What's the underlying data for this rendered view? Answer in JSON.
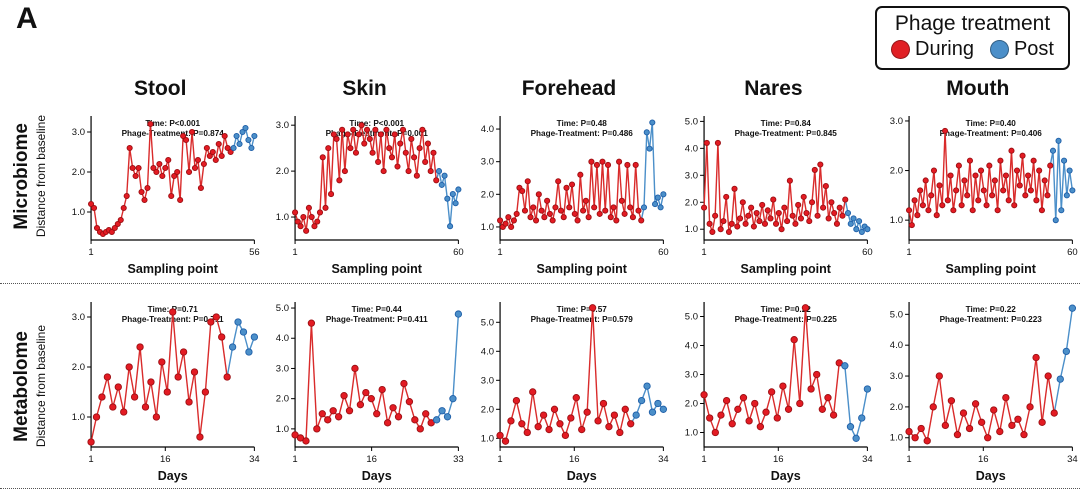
{
  "panel_label": "A",
  "legend": {
    "title": "Phage treatment",
    "items": [
      {
        "label": "During",
        "color": "#e01f24"
      },
      {
        "label": "Post",
        "color": "#4b8fc9"
      }
    ]
  },
  "rows": [
    {
      "title": "Microbiome",
      "axis_label": "Distance from baseline",
      "x_label": "Sampling point"
    },
    {
      "title": "Metabolome",
      "axis_label": "Distance from baseline",
      "x_label": "Days"
    }
  ],
  "columns": [
    "Stool",
    "Skin",
    "Forehead",
    "Nares",
    "Mouth"
  ],
  "colors": {
    "during_fill": "#e31b23",
    "during_stroke": "#9c0f13",
    "during_line": "#d92b2b",
    "post_fill": "#4b8fc9",
    "post_stroke": "#1f5fa8",
    "post_line": "#4b8fc9"
  },
  "chart_data": [
    {
      "id": "micro-stool",
      "type": "line",
      "row": 0,
      "col": 0,
      "stats": {
        "time": "Time: P<0.001",
        "phage": "Phage-Treatment: P=0.874"
      },
      "xlim": [
        1,
        56
      ],
      "xticks": [
        1,
        56
      ],
      "ylim": [
        0.3,
        3.4
      ],
      "yticks": [
        1.0,
        2.0,
        3.0
      ],
      "series": [
        {
          "name": "During",
          "values": [
            1.2,
            1.1,
            0.6,
            0.5,
            0.45,
            0.5,
            0.55,
            0.5,
            0.6,
            0.7,
            0.8,
            1.1,
            1.4,
            2.6,
            2.1,
            1.9,
            2.1,
            1.5,
            1.3,
            1.6,
            3.2,
            2.1,
            2.0,
            2.2,
            1.9,
            2.1,
            2.3,
            1.4,
            1.9,
            2.0,
            1.3,
            2.9,
            2.8,
            2.0,
            3.0,
            2.1,
            2.3,
            1.6,
            2.2,
            2.6,
            2.4,
            2.5,
            2.3,
            2.7,
            2.4,
            2.9,
            2.6,
            2.5
          ]
        },
        {
          "name": "Post",
          "values": [
            2.6,
            2.9,
            2.7,
            3.0,
            3.1,
            2.8,
            2.6,
            2.9
          ]
        }
      ]
    },
    {
      "id": "micro-skin",
      "type": "line",
      "row": 0,
      "col": 1,
      "stats": {
        "time": "Time: P<0.001",
        "phage": "Phage-Treatment: P=0.001"
      },
      "xlim": [
        1,
        60
      ],
      "xticks": [
        1,
        60
      ],
      "ylim": [
        0.5,
        3.2
      ],
      "yticks": [
        1.0,
        2.0,
        3.0
      ],
      "series": [
        {
          "name": "During",
          "values": [
            1.1,
            0.9,
            0.8,
            1.0,
            0.7,
            1.2,
            1.0,
            0.8,
            0.9,
            1.1,
            2.3,
            1.2,
            2.5,
            1.5,
            2.8,
            2.7,
            1.8,
            2.9,
            2.0,
            2.8,
            2.5,
            2.9,
            2.4,
            2.8,
            3.0,
            2.6,
            2.9,
            2.7,
            2.4,
            2.9,
            2.2,
            2.8,
            2.0,
            2.9,
            2.5,
            2.3,
            2.8,
            2.1,
            2.6,
            2.9,
            2.4,
            2.0,
            2.7,
            2.3,
            1.9,
            2.5,
            2.9,
            2.2,
            2.6,
            2.0,
            2.4,
            1.8
          ]
        },
        {
          "name": "Post",
          "values": [
            2.0,
            1.7,
            1.9,
            1.4,
            0.8,
            1.5,
            1.3,
            1.6
          ]
        }
      ]
    },
    {
      "id": "micro-forehead",
      "type": "line",
      "row": 0,
      "col": 2,
      "stats": {
        "time": "Time: P=0.48",
        "phage": "Phage-Treatment: P=0.486"
      },
      "xlim": [
        1,
        60
      ],
      "xticks": [
        1,
        60
      ],
      "ylim": [
        0.6,
        4.4
      ],
      "yticks": [
        1.0,
        2.0,
        3.0,
        4.0
      ],
      "series": [
        {
          "name": "During",
          "values": [
            1.2,
            1.0,
            1.1,
            1.3,
            1.0,
            1.2,
            1.4,
            2.2,
            2.1,
            1.5,
            2.4,
            1.3,
            1.6,
            1.2,
            2.0,
            1.5,
            1.3,
            1.8,
            1.4,
            1.2,
            1.6,
            2.4,
            1.5,
            1.3,
            2.2,
            1.6,
            2.3,
            1.4,
            1.2,
            2.6,
            1.5,
            1.8,
            1.3,
            3.0,
            1.6,
            2.9,
            1.4,
            3.0,
            1.5,
            2.9,
            1.3,
            1.6,
            1.2,
            3.0,
            1.8,
            1.4,
            2.9,
            1.6,
            1.3,
            2.9,
            1.5,
            1.2
          ]
        },
        {
          "name": "Post",
          "values": [
            1.6,
            3.9,
            3.4,
            4.2,
            1.7,
            1.9,
            1.6,
            2.0
          ]
        }
      ]
    },
    {
      "id": "micro-nares",
      "type": "line",
      "row": 0,
      "col": 3,
      "stats": {
        "time": "Time: P=0.84",
        "phage": "Phage-Treatment: P=0.845"
      },
      "xlim": [
        1,
        60
      ],
      "xticks": [
        1,
        60
      ],
      "ylim": [
        0.6,
        5.2
      ],
      "yticks": [
        1.0,
        2.0,
        3.0,
        4.0,
        5.0
      ],
      "series": [
        {
          "name": "During",
          "values": [
            1.8,
            4.2,
            1.2,
            0.9,
            1.5,
            4.2,
            1.0,
            1.3,
            2.2,
            0.9,
            1.2,
            2.5,
            1.1,
            1.4,
            2.0,
            1.2,
            1.5,
            1.8,
            1.1,
            1.6,
            1.3,
            1.9,
            1.2,
            1.7,
            1.4,
            2.1,
            1.2,
            1.6,
            1.0,
            1.8,
            1.3,
            2.8,
            1.5,
            1.2,
            1.9,
            1.4,
            2.2,
            1.6,
            1.3,
            2.0,
            3.2,
            1.5,
            3.4,
            1.8,
            2.6,
            1.4,
            2.0,
            1.6,
            1.2,
            1.8,
            1.5,
            2.1
          ]
        },
        {
          "name": "Post",
          "values": [
            1.6,
            1.2,
            1.4,
            1.0,
            1.3,
            0.9,
            1.1,
            1.0
          ]
        }
      ]
    },
    {
      "id": "micro-mouth",
      "type": "line",
      "row": 0,
      "col": 4,
      "stats": {
        "time": "Time: P=0.40",
        "phage": "Phage-Treatment: P=0.406"
      },
      "xlim": [
        1,
        60
      ],
      "xticks": [
        1,
        60
      ],
      "ylim": [
        0.6,
        3.1
      ],
      "yticks": [
        1.0,
        2.0,
        3.0
      ],
      "series": [
        {
          "name": "During",
          "values": [
            1.2,
            0.9,
            1.4,
            1.1,
            1.6,
            1.3,
            1.8,
            1.2,
            1.5,
            2.0,
            1.1,
            1.7,
            1.3,
            2.8,
            1.4,
            1.9,
            1.2,
            1.6,
            2.1,
            1.3,
            1.8,
            1.5,
            2.2,
            1.2,
            1.9,
            1.4,
            2.0,
            1.6,
            1.3,
            2.1,
            1.5,
            1.8,
            1.2,
            2.2,
            1.6,
            1.9,
            1.4,
            2.4,
            1.3,
            2.0,
            1.7,
            2.3,
            1.5,
            1.9,
            1.6,
            2.2,
            1.4,
            2.0,
            1.2,
            1.8,
            1.5,
            2.1
          ]
        },
        {
          "name": "Post",
          "values": [
            2.4,
            1.0,
            2.6,
            1.2,
            2.2,
            1.5,
            2.0,
            1.6
          ]
        }
      ]
    },
    {
      "id": "metab-stool",
      "type": "line",
      "row": 1,
      "col": 0,
      "stats": {
        "time": "Time: P=0.71",
        "phage": "Phage-Treatment: P=0.711"
      },
      "xlim": [
        1,
        34
      ],
      "xticks": [
        1,
        16,
        34
      ],
      "ylim": [
        0.4,
        3.3
      ],
      "yticks": [
        1.0,
        2.0,
        3.0
      ],
      "series": [
        {
          "name": "During",
          "values": [
            0.5,
            1.0,
            1.4,
            1.8,
            1.2,
            1.6,
            1.1,
            2.0,
            1.4,
            2.4,
            1.2,
            1.7,
            1.0,
            2.1,
            1.5,
            3.1,
            1.8,
            2.3,
            1.3,
            1.9,
            0.6,
            1.5,
            2.9,
            3.0,
            2.6,
            1.8
          ]
        },
        {
          "name": "Post",
          "values": [
            2.4,
            2.9,
            2.7,
            2.3,
            2.6
          ]
        }
      ]
    },
    {
      "id": "metab-skin",
      "type": "line",
      "row": 1,
      "col": 1,
      "stats": {
        "time": "Time: P=0.44",
        "phage": "Phage-Treatment: P=0.411"
      },
      "xlim": [
        1,
        33
      ],
      "xticks": [
        1,
        16,
        33
      ],
      "ylim": [
        0.4,
        5.2
      ],
      "yticks": [
        1.0,
        2.0,
        3.0,
        4.0,
        5.0
      ],
      "series": [
        {
          "name": "During",
          "values": [
            0.8,
            0.7,
            0.6,
            4.5,
            1.0,
            1.5,
            1.3,
            1.6,
            1.4,
            2.1,
            1.6,
            3.0,
            1.8,
            2.2,
            2.0,
            1.5,
            2.3,
            1.2,
            1.7,
            1.4,
            2.5,
            1.9,
            1.3,
            1.0,
            1.5,
            1.2
          ]
        },
        {
          "name": "Post",
          "values": [
            1.3,
            1.6,
            1.4,
            2.0,
            4.8
          ]
        }
      ]
    },
    {
      "id": "metab-forehead",
      "type": "line",
      "row": 1,
      "col": 2,
      "stats": {
        "time": "Time: P=0.57",
        "phage": "Phage-Treatment: P=0.579"
      },
      "xlim": [
        1,
        34
      ],
      "xticks": [
        1,
        16,
        34
      ],
      "ylim": [
        0.7,
        5.7
      ],
      "yticks": [
        1.0,
        2.0,
        3.0,
        4.0,
        5.0
      ],
      "series": [
        {
          "name": "During",
          "values": [
            1.1,
            0.9,
            1.6,
            2.3,
            1.5,
            1.2,
            2.6,
            1.4,
            1.8,
            1.3,
            2.0,
            1.5,
            1.1,
            1.7,
            2.4,
            1.3,
            1.9,
            5.5,
            1.6,
            2.2,
            1.4,
            1.8,
            1.2,
            2.0,
            1.5
          ]
        },
        {
          "name": "Post",
          "values": [
            1.8,
            2.3,
            2.8,
            1.9,
            2.2,
            2.0
          ]
        }
      ]
    },
    {
      "id": "metab-nares",
      "type": "line",
      "row": 1,
      "col": 3,
      "stats": {
        "time": "Time: P=0.22",
        "phage": "Phage-Treatment: P=0.225"
      },
      "xlim": [
        1,
        34
      ],
      "xticks": [
        1,
        16,
        34
      ],
      "ylim": [
        0.5,
        5.5
      ],
      "yticks": [
        1.0,
        2.0,
        3.0,
        4.0,
        5.0
      ],
      "series": [
        {
          "name": "During",
          "values": [
            2.3,
            1.5,
            1.0,
            1.6,
            2.1,
            1.3,
            1.8,
            2.2,
            1.4,
            2.0,
            1.2,
            1.7,
            2.4,
            1.5,
            2.6,
            1.8,
            4.2,
            2.0,
            5.3,
            2.5,
            3.0,
            1.8,
            2.2,
            1.6,
            3.4
          ]
        },
        {
          "name": "Post",
          "values": [
            3.3,
            1.2,
            0.8,
            1.5,
            2.5
          ]
        }
      ]
    },
    {
      "id": "metab-mouth",
      "type": "line",
      "row": 1,
      "col": 4,
      "stats": {
        "time": "Time: P=0.22",
        "phage": "Phage-Treatment: P=0.223"
      },
      "xlim": [
        1,
        34
      ],
      "xticks": [
        1,
        16,
        34
      ],
      "ylim": [
        0.7,
        5.4
      ],
      "yticks": [
        1.0,
        2.0,
        3.0,
        4.0,
        5.0
      ],
      "series": [
        {
          "name": "During",
          "values": [
            1.2,
            1.0,
            1.3,
            0.9,
            2.0,
            3.0,
            1.4,
            2.2,
            1.1,
            1.8,
            1.3,
            2.1,
            1.5,
            1.0,
            1.9,
            1.2,
            2.3,
            1.4,
            1.6,
            1.1,
            2.0,
            3.6,
            1.5,
            3.0,
            1.8
          ]
        },
        {
          "name": "Post",
          "values": [
            2.9,
            3.8,
            5.2
          ]
        }
      ]
    }
  ]
}
